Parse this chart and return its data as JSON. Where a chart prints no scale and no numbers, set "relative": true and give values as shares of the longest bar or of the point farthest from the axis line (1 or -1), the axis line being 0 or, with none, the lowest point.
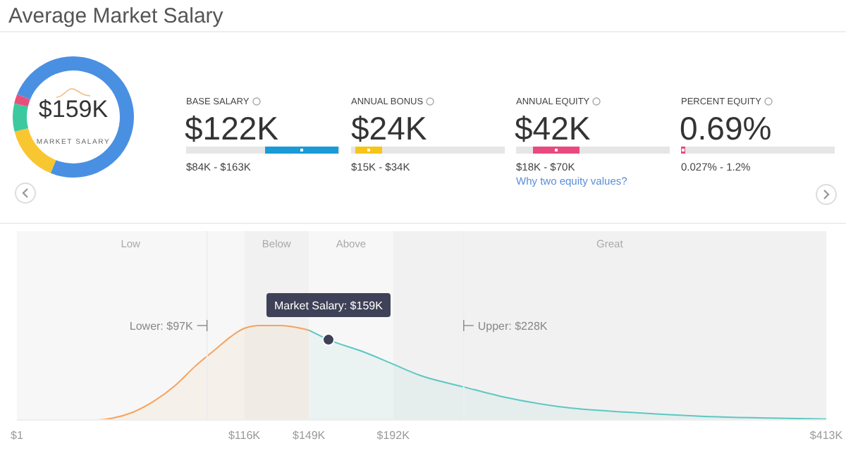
{
  "chart_data": [
    {
      "type": "donut",
      "title": "Average Market Salary",
      "categories": [
        null,
        null,
        null,
        null
      ],
      "values": [
        75,
        15,
        7.5,
        2.5
      ],
      "colors": [
        "#4a90e2",
        "#f8c630",
        "#3cc9a0",
        "#e8507a"
      ],
      "annotations": [
        "$159K",
        "MARKET SALARY"
      ]
    },
    {
      "type": "other",
      "annotations": [
        "BASE SALARY",
        "$122K",
        "$84K - $163K",
        "ANNUAL BONUS",
        "$24K",
        "$15K - $34K",
        "ANNUAL EQUITY",
        "$42K",
        "$18K - $70K",
        "Why two equity values?",
        "PERCENT EQUITY",
        "0.69%",
        "0.027% - 1.2%"
      ]
    },
    {
      "type": "area",
      "relative": true,
      "legend": false,
      "series": [
        {
          "color": "#f5a35f",
          "x": [
            1,
            41000,
            49000,
            59000,
            70000,
            81000,
            91000,
            102000,
            109000,
            116000,
            124000,
            134000,
            145000,
            149000
          ],
          "values": [
            0,
            0,
            0.02,
            0.08,
            0.2,
            0.37,
            0.57,
            0.76,
            0.88,
            0.97,
            1,
            1,
            0.97,
            0.95
          ]
        },
        {
          "color": "#5ec7c2",
          "x": [
            149000,
            159000,
            177000,
            191000,
            206000,
            228000,
            249000,
            277000,
            313000,
            349000,
            384000,
            413000
          ],
          "values": [
            0.95,
            0.85,
            0.72,
            0.6,
            0.47,
            0.35,
            0.24,
            0.14,
            0.08,
            0.04,
            0.02,
            0.01
          ]
        }
      ],
      "xlim": [
        1,
        413000
      ],
      "xticks": [
        {
          "value": 1,
          "label": "$1"
        },
        {
          "value": 116000,
          "label": "$116K"
        },
        {
          "value": 149000,
          "label": "$149K"
        },
        {
          "value": 192000,
          "label": "$192K"
        },
        {
          "value": 413000,
          "label": "$413K"
        }
      ],
      "bands": [
        {
          "axis": "x",
          "from": 1,
          "to": 116000,
          "label": "Low",
          "color": "#f7f7f7"
        },
        {
          "axis": "x",
          "from": 116000,
          "to": 149000,
          "label": "Below",
          "color": "#f1f1f1"
        },
        {
          "axis": "x",
          "from": 149000,
          "to": 192000,
          "label": "Above",
          "color": "#f7f7f7"
        },
        {
          "axis": "x",
          "from": 192000,
          "to": 413000,
          "label": "Great",
          "color": "#f1f1f1"
        }
      ],
      "ref_lines": [
        {
          "axis": "x",
          "value": 97000,
          "label": "Lower: $97K"
        },
        {
          "axis": "x",
          "value": 228000,
          "label": "Upper: $228K"
        }
      ],
      "annotations": [
        {
          "text": "Market Salary: $159K",
          "x": 159000,
          "y": 0.85
        }
      ]
    }
  ]
}
